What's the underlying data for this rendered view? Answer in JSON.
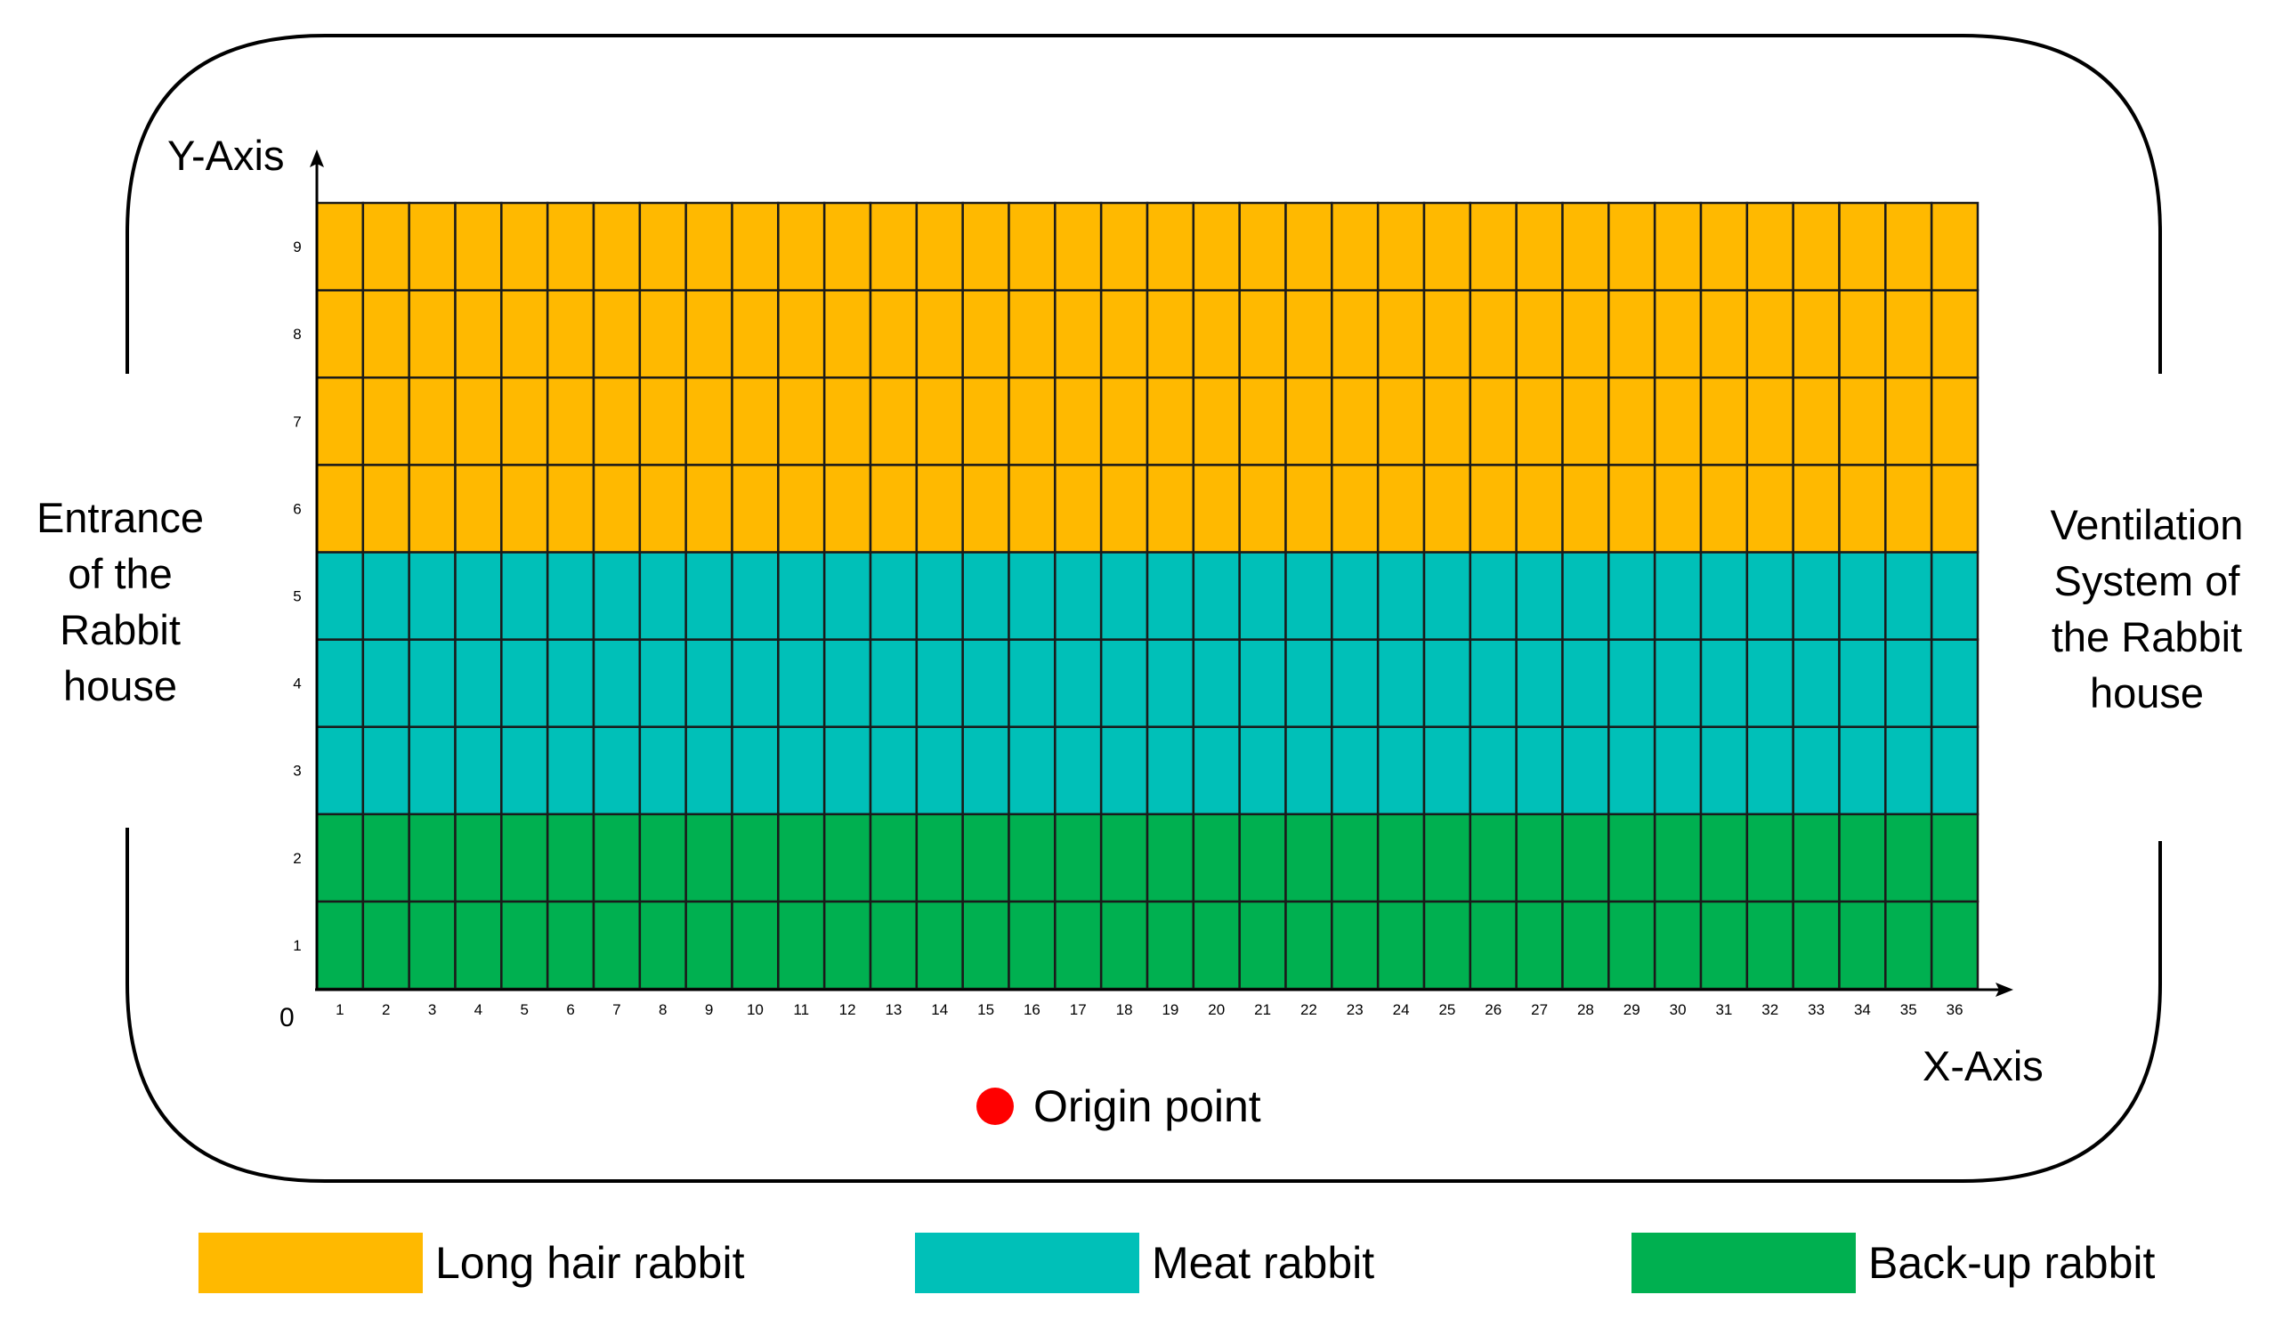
{
  "labels": {
    "y_axis": "Y-Axis",
    "x_axis": "X-Axis",
    "origin_zero": "0",
    "entrance": "Entrance of the Rabbit house",
    "ventilation": "Ventilation System of the Rabbit house",
    "origin_point": "Origin point"
  },
  "grid": {
    "columns": 36,
    "rows": 9,
    "x_ticks": [
      "1",
      "2",
      "3",
      "4",
      "5",
      "6",
      "7",
      "8",
      "9",
      "10",
      "11",
      "12",
      "13",
      "14",
      "15",
      "16",
      "17",
      "18",
      "19",
      "20",
      "21",
      "22",
      "23",
      "24",
      "25",
      "26",
      "27",
      "28",
      "29",
      "30",
      "31",
      "32",
      "33",
      "34",
      "35",
      "36"
    ],
    "y_ticks": [
      "1",
      "2",
      "3",
      "4",
      "5",
      "6",
      "7",
      "8",
      "9"
    ],
    "zones": [
      {
        "name": "Back-up rabbit",
        "rows": [
          1,
          2
        ],
        "color": "#00b050"
      },
      {
        "name": "Meat rabbit",
        "rows": [
          3,
          4,
          5
        ],
        "color": "#00c0b8"
      },
      {
        "name": "Long hair rabbit",
        "rows": [
          6,
          7,
          8,
          9
        ],
        "color": "#ffb900"
      }
    ]
  },
  "legend": [
    {
      "label": "Long hair rabbit",
      "color": "#ffb900"
    },
    {
      "label": "Meat rabbit",
      "color": "#00c0b8"
    },
    {
      "label": "Back-up rabbit",
      "color": "#00b050"
    }
  ],
  "colors": {
    "origin_dot": "#ff0000",
    "grid_line": "#1a1a1a",
    "border": "#000000"
  }
}
